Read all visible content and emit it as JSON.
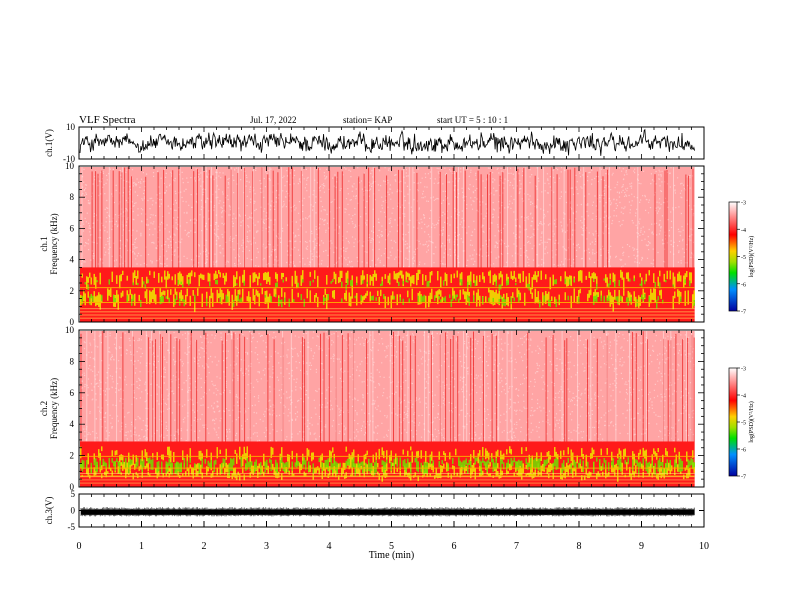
{
  "header": {
    "title": "VLF Spectra",
    "date": "Jul. 17, 2022",
    "station": "station= KAP",
    "start": "start  UT =   5  : 10 : 1"
  },
  "chart_data": [
    {
      "type": "line",
      "name": "ch1-waveform",
      "ylabel": "ch.1(V)",
      "ylim": [
        -10,
        10
      ],
      "yticks": [
        "10",
        "-10"
      ],
      "xlim": [
        0,
        10
      ],
      "style": "dense noisy black waveform roughly between -6 and 6 V"
    },
    {
      "type": "heatmap",
      "name": "ch1-spectrogram",
      "ylabel": "ch.1\nFrequency (kHz)",
      "ylim": [
        0,
        10
      ],
      "yticks": [
        "0",
        "2",
        "4",
        "6",
        "8",
        "10"
      ],
      "xlim": [
        0,
        9.85
      ],
      "colorbar": {
        "label": "log(PSD)(V²/Hz)",
        "range": [
          -7,
          -3
        ],
        "ticks": [
          "-3",
          "-4",
          "-5",
          "-6",
          "-7"
        ]
      },
      "features": "strong emission below ~3.5 kHz with line at ~2.2 kHz; weaker broadband noise above"
    },
    {
      "type": "heatmap",
      "name": "ch2-spectrogram",
      "ylabel": "ch.2\nFrequency (kHz)",
      "ylim": [
        0,
        10
      ],
      "yticks": [
        "0",
        "2",
        "4",
        "6",
        "8",
        "10"
      ],
      "xlim": [
        0,
        9.85
      ],
      "colorbar": {
        "label": "log(PSD)(V²/Hz)",
        "range": [
          -7,
          -3
        ],
        "ticks": [
          "-3",
          "-4",
          "-5",
          "-6",
          "-7"
        ]
      },
      "features": "strong emission below ~2.5 kHz with band at ~1.2-1.8 kHz; weaker broadband noise above"
    },
    {
      "type": "line",
      "name": "ch3-waveform",
      "ylabel": "ch.3(V)",
      "ylim": [
        -5,
        5
      ],
      "yticks": [
        "5",
        "0",
        "-5"
      ],
      "xlim": [
        0,
        10
      ],
      "style": "thick black band near -0.5 V"
    }
  ],
  "xaxis": {
    "label": "Time (min)",
    "ticks": [
      "0",
      "1",
      "2",
      "3",
      "4",
      "5",
      "6",
      "7",
      "8",
      "9",
      "10"
    ],
    "range": [
      0,
      10
    ]
  },
  "colors": {
    "spectrogram_bg": "#ff2a2a",
    "spectrogram_light": "#ff9a9a",
    "emission_yellow": "#f0e000",
    "emission_green": "#70e000",
    "axis": "#000000"
  }
}
